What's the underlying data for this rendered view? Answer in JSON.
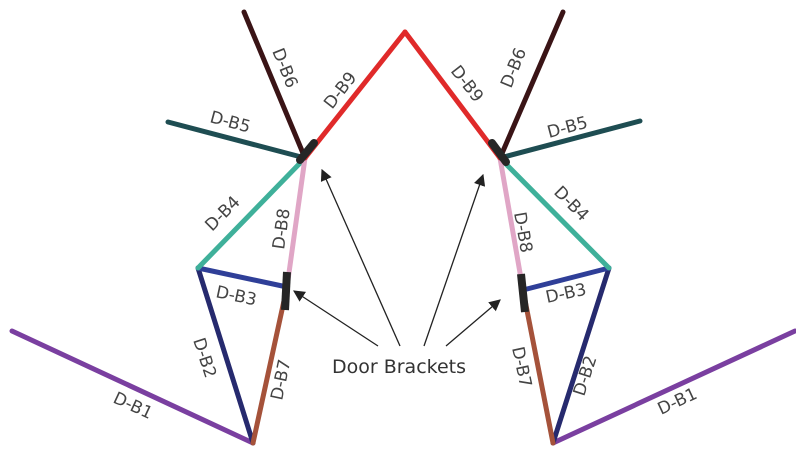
{
  "members": [
    {
      "id": "b1",
      "label": "D-B1",
      "color": "#7a3fa0"
    },
    {
      "id": "b2",
      "label": "D-B2",
      "color": "#262a6e"
    },
    {
      "id": "b3",
      "label": "D-B3",
      "color": "#2f3f98"
    },
    {
      "id": "b4",
      "label": "D-B4",
      "color": "#3fb09a"
    },
    {
      "id": "b5",
      "label": "D-B5",
      "color": "#1e4d52"
    },
    {
      "id": "b6",
      "label": "D-B6",
      "color": "#3a1416"
    },
    {
      "id": "b7",
      "label": "D-B7",
      "color": "#a5523a"
    },
    {
      "id": "b8",
      "label": "D-B8",
      "color": "#e0a6c6"
    },
    {
      "id": "b9",
      "label": "D-B9",
      "color": "#e02a2a"
    }
  ],
  "bracket_color": "#262626",
  "callout": {
    "text": "Door Brackets"
  }
}
